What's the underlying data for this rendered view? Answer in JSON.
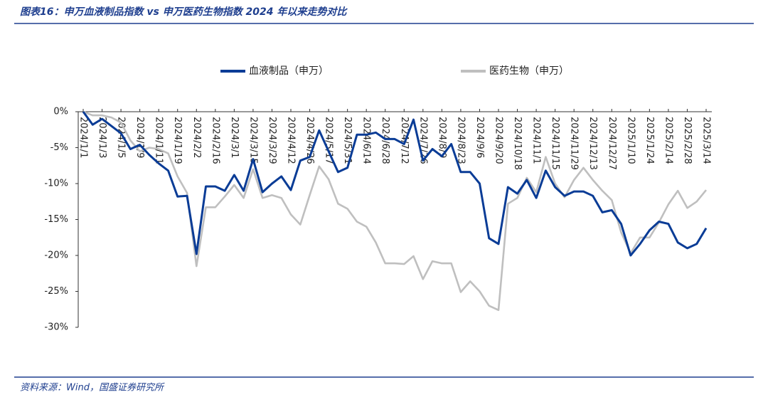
{
  "chart_data": {
    "type": "line",
    "title": "图表16：申万血液制品指数 vs 申万医药生物指数 2024 年以来走势对比",
    "source": "资料来源：Wind，国盛证券研究所",
    "categories": [
      "2024/1/1",
      null,
      "2024/1/3",
      null,
      "2024/1/5",
      null,
      "2024/1/9",
      null,
      "2024/1/11",
      null,
      "2024/1/19",
      null,
      "2024/2/2",
      null,
      "2024/2/16",
      null,
      "2024/3/1",
      null,
      "2024/3/15",
      null,
      "2024/3/29",
      null,
      "2024/4/12",
      null,
      "2024/4/26",
      null,
      "2024/5/17",
      null,
      "2024/5/31",
      null,
      "2024/6/14",
      null,
      "2024/6/28",
      null,
      "2024/7/12",
      null,
      "2024/7/26",
      null,
      "2024/8/9",
      null,
      "2024/8/23",
      null,
      "2024/9/6",
      null,
      "2024/9/20",
      null,
      "2024/10/18",
      null,
      "2024/11/1",
      null,
      "2024/11/15",
      null,
      "2024/11/29",
      null,
      "2024/12/13",
      null,
      "2024/12/27",
      null,
      "2025/1/10",
      null,
      "2025/1/24",
      null,
      "2025/2/14",
      null,
      "2025/2/28",
      null,
      "2025/3/14"
    ],
    "series": [
      {
        "name": "血液制品（申万）",
        "color": "#0a3c96",
        "values": [
          0,
          -1.8,
          -1.0,
          -2.0,
          -3.0,
          -5.2,
          -4.6,
          -6.0,
          -7.2,
          -8.2,
          -11.8,
          -11.7,
          -19.8,
          -10.4,
          -10.4,
          -11.0,
          -8.8,
          -11.0,
          -6.6,
          -11.2,
          -10.0,
          -9.0,
          -10.9,
          -6.8,
          -6.3,
          -2.6,
          -5.5,
          -8.4,
          -7.8,
          -3.2,
          -3.2,
          -2.9,
          -3.8,
          -3.8,
          -4.5,
          -1.1,
          -6.8,
          -5.2,
          -6.2,
          -4.5,
          -8.4,
          -8.4,
          -10.0,
          -17.6,
          -18.4,
          -10.5,
          -11.4,
          -9.5,
          -12.0,
          -8.2,
          -10.5,
          -11.7,
          -11.1,
          -11.1,
          -11.7,
          -14.0,
          -13.7,
          -15.6,
          -20.0,
          -18.4,
          -16.5,
          -15.3,
          -15.6,
          -18.2,
          -19.0,
          -18.4,
          -16.2
        ]
      },
      {
        "name": "医药生物（申万）",
        "color": "#bfbfbf",
        "values": [
          0,
          -0.5,
          -0.5,
          -0.8,
          -1.5,
          -4.0,
          -5.5,
          -5.0,
          -5.2,
          -5.8,
          -9.0,
          -11.3,
          -21.5,
          -13.3,
          -13.3,
          -11.8,
          -10.2,
          -12.0,
          -8.0,
          -12.0,
          -11.6,
          -12.0,
          -14.3,
          -15.7,
          -11.6,
          -7.6,
          -9.4,
          -12.8,
          -13.5,
          -15.3,
          -16.0,
          -18.2,
          -21.1,
          -21.1,
          -21.2,
          -20.1,
          -23.3,
          -20.8,
          -21.1,
          -21.1,
          -25.1,
          -23.6,
          -25.0,
          -27.0,
          -27.6,
          -12.8,
          -12.0,
          -9.2,
          -11.2,
          -6.3,
          -10.0,
          -11.9,
          -9.5,
          -7.8,
          -9.5,
          -11.0,
          -12.3,
          -16.8,
          -19.7,
          -17.5,
          -17.5,
          -15.4,
          -12.9,
          -11.0,
          -13.4,
          -12.5,
          -10.9
        ]
      }
    ],
    "ylim": [
      -30,
      0
    ],
    "yticks": [
      {
        "value": 0,
        "label": "0%"
      },
      {
        "value": -5,
        "label": "-5%"
      },
      {
        "value": -10,
        "label": "-10%"
      },
      {
        "value": -15,
        "label": "-15%"
      },
      {
        "value": -20,
        "label": "-20%"
      },
      {
        "value": -25,
        "label": "-25%"
      },
      {
        "value": -30,
        "label": "-30%"
      }
    ],
    "legend": "top"
  }
}
